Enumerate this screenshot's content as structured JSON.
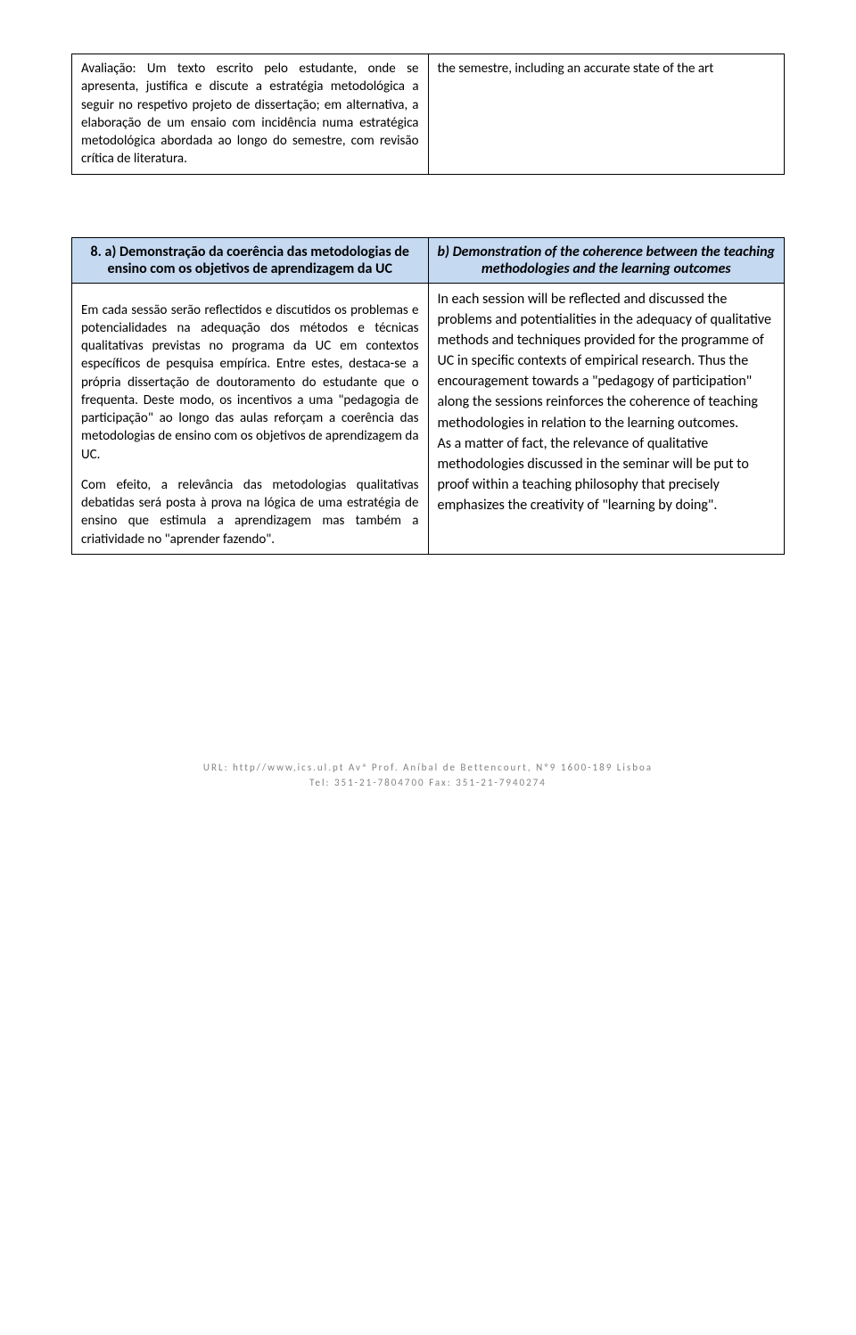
{
  "table1": {
    "left": "Avaliação: Um texto escrito pelo estudante, onde se apresenta, justifica e discute a estratégia metodológica a seguir no respetivo projeto de dissertação; em alternativa, a elaboração de um ensaio com incidência numa estratégica metodológica abordada ao longo do semestre, com revisão crítica de literatura.",
    "right": "the semestre, including an accurate state of the art"
  },
  "table2": {
    "header_left": "8. a) Demonstração da coerência das metodologias de ensino com os objetivos de aprendizagem da UC",
    "header_right": "b) Demonstration of the coherence between the teaching methodologies and the learning outcomes",
    "body_left_p1": "Em cada sessão serão reflectidos e discutidos os problemas e potencialidades na adequação dos métodos e técnicas qualitativas previstas no programa da UC em contextos específicos de pesquisa empírica. Entre estes, destaca-se a própria dissertação de doutoramento do estudante que o frequenta. Deste modo, os incentivos a uma \"pedagogia de participação\" ao longo das aulas reforçam a coerência das metodologias de ensino com os objetivos de aprendizagem da UC.",
    "body_left_p2": "Com efeito, a relevância das metodologias qualitativas debatidas será posta à prova na lógica de uma estratégia de ensino que estimula a aprendizagem mas também a criatividade no \"aprender fazendo\".",
    "body_right_p1": "In each session will be reflected and discussed the problems and potentialities in the adequacy of qualitative methods and techniques provided for the programme of UC in specific contexts of empirical research. Thus the encouragement towards a \"pedagogy of participation\" along the sessions reinforces the coherence of teaching methodologies in relation to the learning outcomes.",
    "body_right_p2": "As a matter of fact, the relevance of qualitative methodologies discussed in the seminar will be put to proof within a teaching philosophy that precisely emphasizes the creativity of \"learning by doing\"."
  },
  "footer": {
    "line1": "URL: http//www,ics.ul.pt Avª Prof. Aníbal de Bettencourt, Nº9 1600-189 Lisboa",
    "line2": "Tel: 351-21-7804700 Fax: 351-21-7940274"
  },
  "colors": {
    "header_bg": "#c5d9f1",
    "border": "#000000",
    "text": "#000000",
    "footer_text": "#808080",
    "background": "#ffffff"
  }
}
